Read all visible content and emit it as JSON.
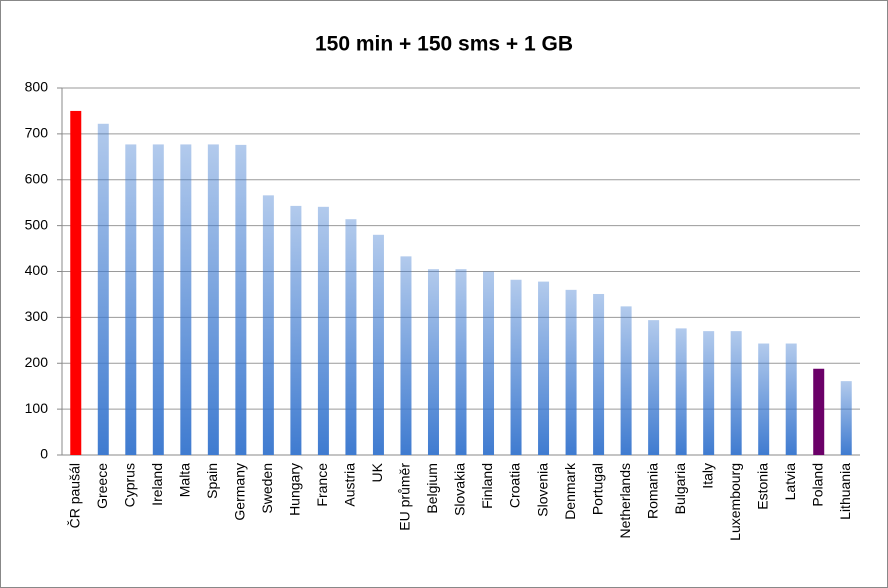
{
  "chart_data": {
    "type": "bar",
    "title": "150 min + 150 sms + 1 GB",
    "categories": [
      "ČR paušál",
      "Greece",
      "Cyprus",
      "Ireland",
      "Malta",
      "Spain",
      "Germany",
      "Sweden",
      "Hungary",
      "France",
      "Austria",
      "UK",
      "EU průměr",
      "Belgium",
      "Slovakia",
      "Finland",
      "Croatia",
      "Slovenia",
      "Denmark",
      "Portugal",
      "Netherlands",
      "Romania",
      "Bulgaria",
      "Italy",
      "Luxembourg",
      "Estonia",
      "Latvia",
      "Poland",
      "Lithuania"
    ],
    "values": [
      750,
      722,
      677,
      677,
      677,
      677,
      676,
      566,
      543,
      541,
      514,
      480,
      433,
      405,
      405,
      400,
      382,
      378,
      360,
      351,
      324,
      294,
      276,
      270,
      270,
      243,
      243,
      188,
      161
    ],
    "color": "#3f7bd0",
    "colors": [
      "#ff0000",
      "#3f7bd0",
      "#3f7bd0",
      "#3f7bd0",
      "#3f7bd0",
      "#3f7bd0",
      "#3f7bd0",
      "#3f7bd0",
      "#3f7bd0",
      "#3f7bd0",
      "#3f7bd0",
      "#3f7bd0",
      "#3f7bd0",
      "#3f7bd0",
      "#3f7bd0",
      "#3f7bd0",
      "#3f7bd0",
      "#3f7bd0",
      "#3f7bd0",
      "#3f7bd0",
      "#3f7bd0",
      "#3f7bd0",
      "#3f7bd0",
      "#3f7bd0",
      "#3f7bd0",
      "#3f7bd0",
      "#3f7bd0",
      "#6b0068",
      "#3f7bd0"
    ],
    "ylim": [
      0,
      800
    ],
    "yticks": [
      0,
      100,
      200,
      300,
      400,
      500,
      600,
      700,
      800
    ],
    "grid": true
  }
}
